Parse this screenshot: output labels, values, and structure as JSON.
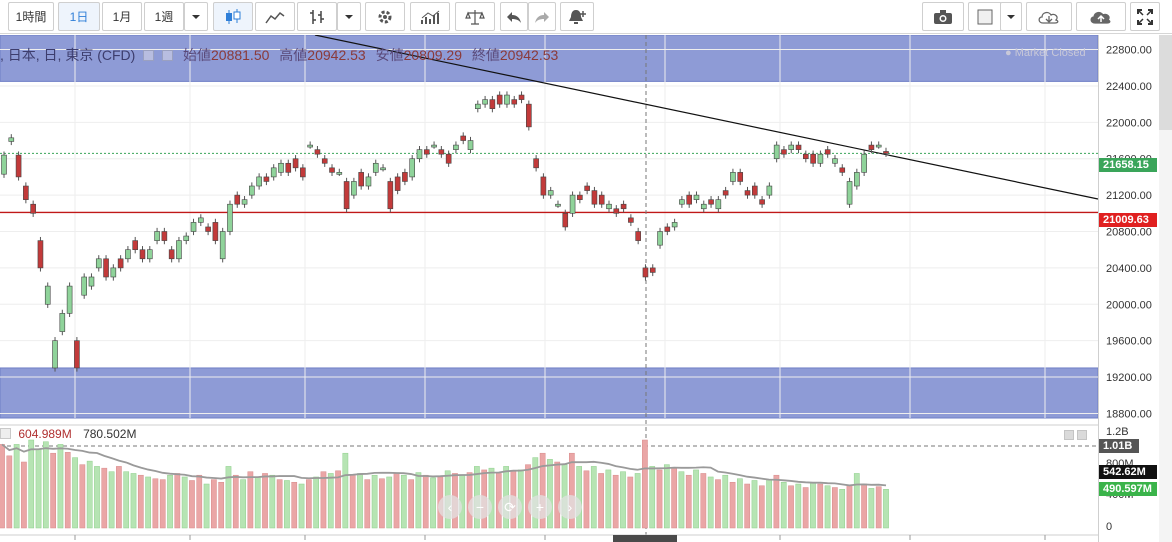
{
  "toolbar": {
    "interval_1h": "1時間",
    "interval_1d": "1日",
    "interval_1m": "1月",
    "interval_1w": "1週"
  },
  "legend": {
    "symbol": ", 日本, 日, 東京 (CFD)",
    "open_label": "始値",
    "open_value": "20881.50",
    "high_label": "高値",
    "high_value": "20942.53",
    "low_label": "安値",
    "low_value": "20809.29",
    "close_label": "終値",
    "close_value": "20942.53"
  },
  "market_status": "Market Closed",
  "volume_legend": {
    "value1": "604.989M",
    "value2": "780.502M"
  },
  "price_tags": {
    "current": "21658.15",
    "support": "21009.63"
  },
  "volume_tags": {
    "max": "1.01B",
    "ma": "542.62M",
    "last": "490.597M"
  },
  "chart_data": {
    "type": "candlestick",
    "price_axis_ticks": [
      "22800.00",
      "22400.00",
      "22000.00",
      "21600.00",
      "21200.00",
      "20800.00",
      "20400.00",
      "20000.00",
      "19600.00",
      "19200.00",
      "18800.00"
    ],
    "volume_axis_ticks": [
      "1.2B",
      "800M",
      "400M",
      "0"
    ],
    "ylim": [
      18750,
      22960
    ],
    "horizontal_lines": [
      21658.15,
      21009.63
    ],
    "shaded_zones": [
      [
        22450,
        22960
      ],
      [
        18750,
        19300
      ]
    ],
    "candles": [
      {
        "o": 21430,
        "c": 21640
      },
      {
        "o": 21790,
        "c": 21830
      },
      {
        "o": 21640,
        "c": 21400
      },
      {
        "o": 21300,
        "c": 21150
      },
      {
        "o": 21100,
        "c": 21000
      },
      {
        "o": 20700,
        "c": 20400
      },
      {
        "o": 20000,
        "c": 20200
      },
      {
        "o": 19300,
        "c": 19600
      },
      {
        "o": 19700,
        "c": 19900
      },
      {
        "o": 19900,
        "c": 20200
      },
      {
        "o": 19600,
        "c": 19300
      },
      {
        "o": 20100,
        "c": 20300
      },
      {
        "o": 20200,
        "c": 20300
      },
      {
        "o": 20400,
        "c": 20500
      },
      {
        "o": 20500,
        "c": 20300
      },
      {
        "o": 20300,
        "c": 20400
      },
      {
        "o": 20500,
        "c": 20400
      },
      {
        "o": 20500,
        "c": 20600
      },
      {
        "o": 20700,
        "c": 20600
      },
      {
        "o": 20600,
        "c": 20500
      },
      {
        "o": 20500,
        "c": 20600
      },
      {
        "o": 20700,
        "c": 20800
      },
      {
        "o": 20800,
        "c": 20700
      },
      {
        "o": 20600,
        "c": 20500
      },
      {
        "o": 20500,
        "c": 20700
      },
      {
        "o": 20700,
        "c": 20750
      },
      {
        "o": 20800,
        "c": 20900
      },
      {
        "o": 20900,
        "c": 20950
      },
      {
        "o": 20850,
        "c": 20800
      },
      {
        "o": 20900,
        "c": 20700
      },
      {
        "o": 20500,
        "c": 20800
      },
      {
        "o": 20800,
        "c": 21100
      },
      {
        "o": 21200,
        "c": 21100
      },
      {
        "o": 21100,
        "c": 21150
      },
      {
        "o": 21200,
        "c": 21300
      },
      {
        "o": 21300,
        "c": 21400
      },
      {
        "o": 21400,
        "c": 21350
      },
      {
        "o": 21400,
        "c": 21500
      },
      {
        "o": 21450,
        "c": 21550
      },
      {
        "o": 21550,
        "c": 21450
      },
      {
        "o": 21600,
        "c": 21500
      },
      {
        "o": 21500,
        "c": 21400
      },
      {
        "o": 21750,
        "c": 21750
      },
      {
        "o": 21700,
        "c": 21650
      },
      {
        "o": 21600,
        "c": 21550
      },
      {
        "o": 21500,
        "c": 21450
      },
      {
        "o": 21450,
        "c": 21450
      },
      {
        "o": 21350,
        "c": 21050
      },
      {
        "o": 21200,
        "c": 21350
      },
      {
        "o": 21450,
        "c": 21300
      },
      {
        "o": 21300,
        "c": 21400
      },
      {
        "o": 21450,
        "c": 21550
      },
      {
        "o": 21500,
        "c": 21500
      },
      {
        "o": 21350,
        "c": 21050
      },
      {
        "o": 21400,
        "c": 21250
      },
      {
        "o": 21450,
        "c": 21350
      },
      {
        "o": 21400,
        "c": 21600
      },
      {
        "o": 21600,
        "c": 21700
      },
      {
        "o": 21700,
        "c": 21650
      },
      {
        "o": 21750,
        "c": 21750
      },
      {
        "o": 21700,
        "c": 21650
      },
      {
        "o": 21650,
        "c": 21550
      },
      {
        "o": 21700,
        "c": 21750
      },
      {
        "o": 21850,
        "c": 21800
      },
      {
        "o": 21700,
        "c": 21800
      },
      {
        "o": 22150,
        "c": 22200
      },
      {
        "o": 22200,
        "c": 22250
      },
      {
        "o": 22250,
        "c": 22150
      },
      {
        "o": 22300,
        "c": 22200
      },
      {
        "o": 22200,
        "c": 22300
      },
      {
        "o": 22250,
        "c": 22200
      },
      {
        "o": 22300,
        "c": 22250
      },
      {
        "o": 22200,
        "c": 21950
      },
      {
        "o": 21600,
        "c": 21500
      },
      {
        "o": 21400,
        "c": 21200
      },
      {
        "o": 21200,
        "c": 21250
      },
      {
        "o": 21100,
        "c": 21100
      },
      {
        "o": 21000,
        "c": 20850
      },
      {
        "o": 21000,
        "c": 21200
      },
      {
        "o": 21200,
        "c": 21150
      },
      {
        "o": 21300,
        "c": 21250
      },
      {
        "o": 21250,
        "c": 21100
      },
      {
        "o": 21200,
        "c": 21100
      },
      {
        "o": 21050,
        "c": 21100
      },
      {
        "o": 21050,
        "c": 21000
      },
      {
        "o": 21100,
        "c": 21050
      },
      {
        "o": 20950,
        "c": 20900
      },
      {
        "o": 20800,
        "c": 20700
      },
      {
        "o": 20400,
        "c": 20300
      },
      {
        "o": 20400,
        "c": 20350
      },
      {
        "o": 20650,
        "c": 20800
      },
      {
        "o": 20850,
        "c": 20800
      },
      {
        "o": 20850,
        "c": 20900
      },
      {
        "o": 21100,
        "c": 21150
      },
      {
        "o": 21200,
        "c": 21100
      },
      {
        "o": 21150,
        "c": 21200
      },
      {
        "o": 21050,
        "c": 21100
      },
      {
        "o": 21150,
        "c": 21100
      },
      {
        "o": 21050,
        "c": 21150
      },
      {
        "o": 21250,
        "c": 21200
      },
      {
        "o": 21350,
        "c": 21450
      },
      {
        "o": 21450,
        "c": 21350
      },
      {
        "o": 21250,
        "c": 21200
      },
      {
        "o": 21300,
        "c": 21200
      },
      {
        "o": 21150,
        "c": 21100
      },
      {
        "o": 21200,
        "c": 21300
      },
      {
        "o": 21600,
        "c": 21750
      },
      {
        "o": 21700,
        "c": 21650
      },
      {
        "o": 21700,
        "c": 21750
      },
      {
        "o": 21750,
        "c": 21700
      },
      {
        "o": 21650,
        "c": 21600
      },
      {
        "o": 21650,
        "c": 21550
      },
      {
        "o": 21550,
        "c": 21650
      },
      {
        "o": 21700,
        "c": 21650
      },
      {
        "o": 21550,
        "c": 21600
      },
      {
        "o": 21500,
        "c": 21450
      },
      {
        "o": 21100,
        "c": 21350
      },
      {
        "o": 21300,
        "c": 21450
      },
      {
        "o": 21450,
        "c": 21650
      },
      {
        "o": 21750,
        "c": 21700
      },
      {
        "o": 21750,
        "c": 21750
      },
      {
        "o": 21680,
        "c": 21660
      }
    ],
    "volume_bars": [
      {
        "v": 0.95,
        "up": false
      },
      {
        "v": 0.82,
        "up": false
      },
      {
        "v": 0.95,
        "up": true
      },
      {
        "v": 0.75,
        "up": false
      },
      {
        "v": 1.0,
        "up": true
      },
      {
        "v": 0.9,
        "up": true
      },
      {
        "v": 0.98,
        "up": true
      },
      {
        "v": 0.85,
        "up": false
      },
      {
        "v": 0.95,
        "up": true
      },
      {
        "v": 0.86,
        "up": false
      },
      {
        "v": 0.8,
        "up": true
      },
      {
        "v": 0.72,
        "up": false
      },
      {
        "v": 0.76,
        "up": true
      },
      {
        "v": 0.7,
        "up": true
      },
      {
        "v": 0.68,
        "up": false
      },
      {
        "v": 0.64,
        "up": true
      },
      {
        "v": 0.7,
        "up": false
      },
      {
        "v": 0.64,
        "up": true
      },
      {
        "v": 0.62,
        "up": true
      },
      {
        "v": 0.6,
        "up": false
      },
      {
        "v": 0.58,
        "up": true
      },
      {
        "v": 0.56,
        "up": false
      },
      {
        "v": 0.55,
        "up": false
      },
      {
        "v": 0.6,
        "up": true
      },
      {
        "v": 0.62,
        "up": false
      },
      {
        "v": 0.58,
        "up": true
      },
      {
        "v": 0.54,
        "up": false
      },
      {
        "v": 0.6,
        "up": false
      },
      {
        "v": 0.5,
        "up": true
      },
      {
        "v": 0.55,
        "up": false
      },
      {
        "v": 0.52,
        "up": false
      },
      {
        "v": 0.7,
        "up": true
      },
      {
        "v": 0.6,
        "up": false
      },
      {
        "v": 0.55,
        "up": true
      },
      {
        "v": 0.64,
        "up": false
      },
      {
        "v": 0.58,
        "up": true
      },
      {
        "v": 0.62,
        "up": false
      },
      {
        "v": 0.6,
        "up": true
      },
      {
        "v": 0.55,
        "up": false
      },
      {
        "v": 0.54,
        "up": true
      },
      {
        "v": 0.52,
        "up": false
      },
      {
        "v": 0.5,
        "up": true
      },
      {
        "v": 0.55,
        "up": false
      },
      {
        "v": 0.58,
        "up": true
      },
      {
        "v": 0.64,
        "up": false
      },
      {
        "v": 0.62,
        "up": true
      },
      {
        "v": 0.65,
        "up": false
      },
      {
        "v": 0.85,
        "up": true
      },
      {
        "v": 0.6,
        "up": false
      },
      {
        "v": 0.62,
        "up": true
      },
      {
        "v": 0.55,
        "up": false
      },
      {
        "v": 0.6,
        "up": true
      },
      {
        "v": 0.56,
        "up": false
      },
      {
        "v": 0.58,
        "up": true
      },
      {
        "v": 0.62,
        "up": false
      },
      {
        "v": 0.6,
        "up": true
      },
      {
        "v": 0.55,
        "up": false
      },
      {
        "v": 0.63,
        "up": true
      },
      {
        "v": 0.6,
        "up": false
      },
      {
        "v": 0.57,
        "up": true
      },
      {
        "v": 0.58,
        "up": false
      },
      {
        "v": 0.65,
        "up": true
      },
      {
        "v": 0.62,
        "up": false
      },
      {
        "v": 0.6,
        "up": true
      },
      {
        "v": 0.63,
        "up": false
      },
      {
        "v": 0.7,
        "up": true
      },
      {
        "v": 0.66,
        "up": false
      },
      {
        "v": 0.68,
        "up": true
      },
      {
        "v": 0.62,
        "up": false
      },
      {
        "v": 0.7,
        "up": true
      },
      {
        "v": 0.65,
        "up": false
      },
      {
        "v": 0.66,
        "up": true
      },
      {
        "v": 0.72,
        "up": false
      },
      {
        "v": 0.8,
        "up": true
      },
      {
        "v": 0.85,
        "up": false
      },
      {
        "v": 0.78,
        "up": true
      },
      {
        "v": 0.75,
        "up": false
      },
      {
        "v": 0.72,
        "up": true
      },
      {
        "v": 0.85,
        "up": false
      },
      {
        "v": 0.7,
        "up": true
      },
      {
        "v": 0.65,
        "up": false
      },
      {
        "v": 0.7,
        "up": true
      },
      {
        "v": 0.62,
        "up": false
      },
      {
        "v": 0.66,
        "up": true
      },
      {
        "v": 0.6,
        "up": false
      },
      {
        "v": 0.64,
        "up": true
      },
      {
        "v": 0.58,
        "up": false
      },
      {
        "v": 0.62,
        "up": true
      },
      {
        "v": 1.0,
        "up": false
      },
      {
        "v": 0.7,
        "up": true
      },
      {
        "v": 0.66,
        "up": false
      },
      {
        "v": 0.72,
        "up": true
      },
      {
        "v": 0.68,
        "up": false
      },
      {
        "v": 0.64,
        "up": true
      },
      {
        "v": 0.6,
        "up": false
      },
      {
        "v": 0.66,
        "up": true
      },
      {
        "v": 0.62,
        "up": false
      },
      {
        "v": 0.58,
        "up": true
      },
      {
        "v": 0.55,
        "up": false
      },
      {
        "v": 0.6,
        "up": true
      },
      {
        "v": 0.52,
        "up": false
      },
      {
        "v": 0.56,
        "up": true
      },
      {
        "v": 0.5,
        "up": false
      },
      {
        "v": 0.54,
        "up": true
      },
      {
        "v": 0.48,
        "up": false
      },
      {
        "v": 0.55,
        "up": true
      },
      {
        "v": 0.6,
        "up": false
      },
      {
        "v": 0.52,
        "up": true
      },
      {
        "v": 0.48,
        "up": false
      },
      {
        "v": 0.5,
        "up": true
      },
      {
        "v": 0.46,
        "up": false
      },
      {
        "v": 0.52,
        "up": true
      },
      {
        "v": 0.5,
        "up": false
      },
      {
        "v": 0.48,
        "up": true
      },
      {
        "v": 0.46,
        "up": false
      },
      {
        "v": 0.44,
        "up": true
      },
      {
        "v": 0.48,
        "up": false
      },
      {
        "v": 0.62,
        "up": true
      },
      {
        "v": 0.5,
        "up": false
      },
      {
        "v": 0.45,
        "up": true
      },
      {
        "v": 0.47,
        "up": false
      },
      {
        "v": 0.44,
        "up": true
      }
    ]
  }
}
